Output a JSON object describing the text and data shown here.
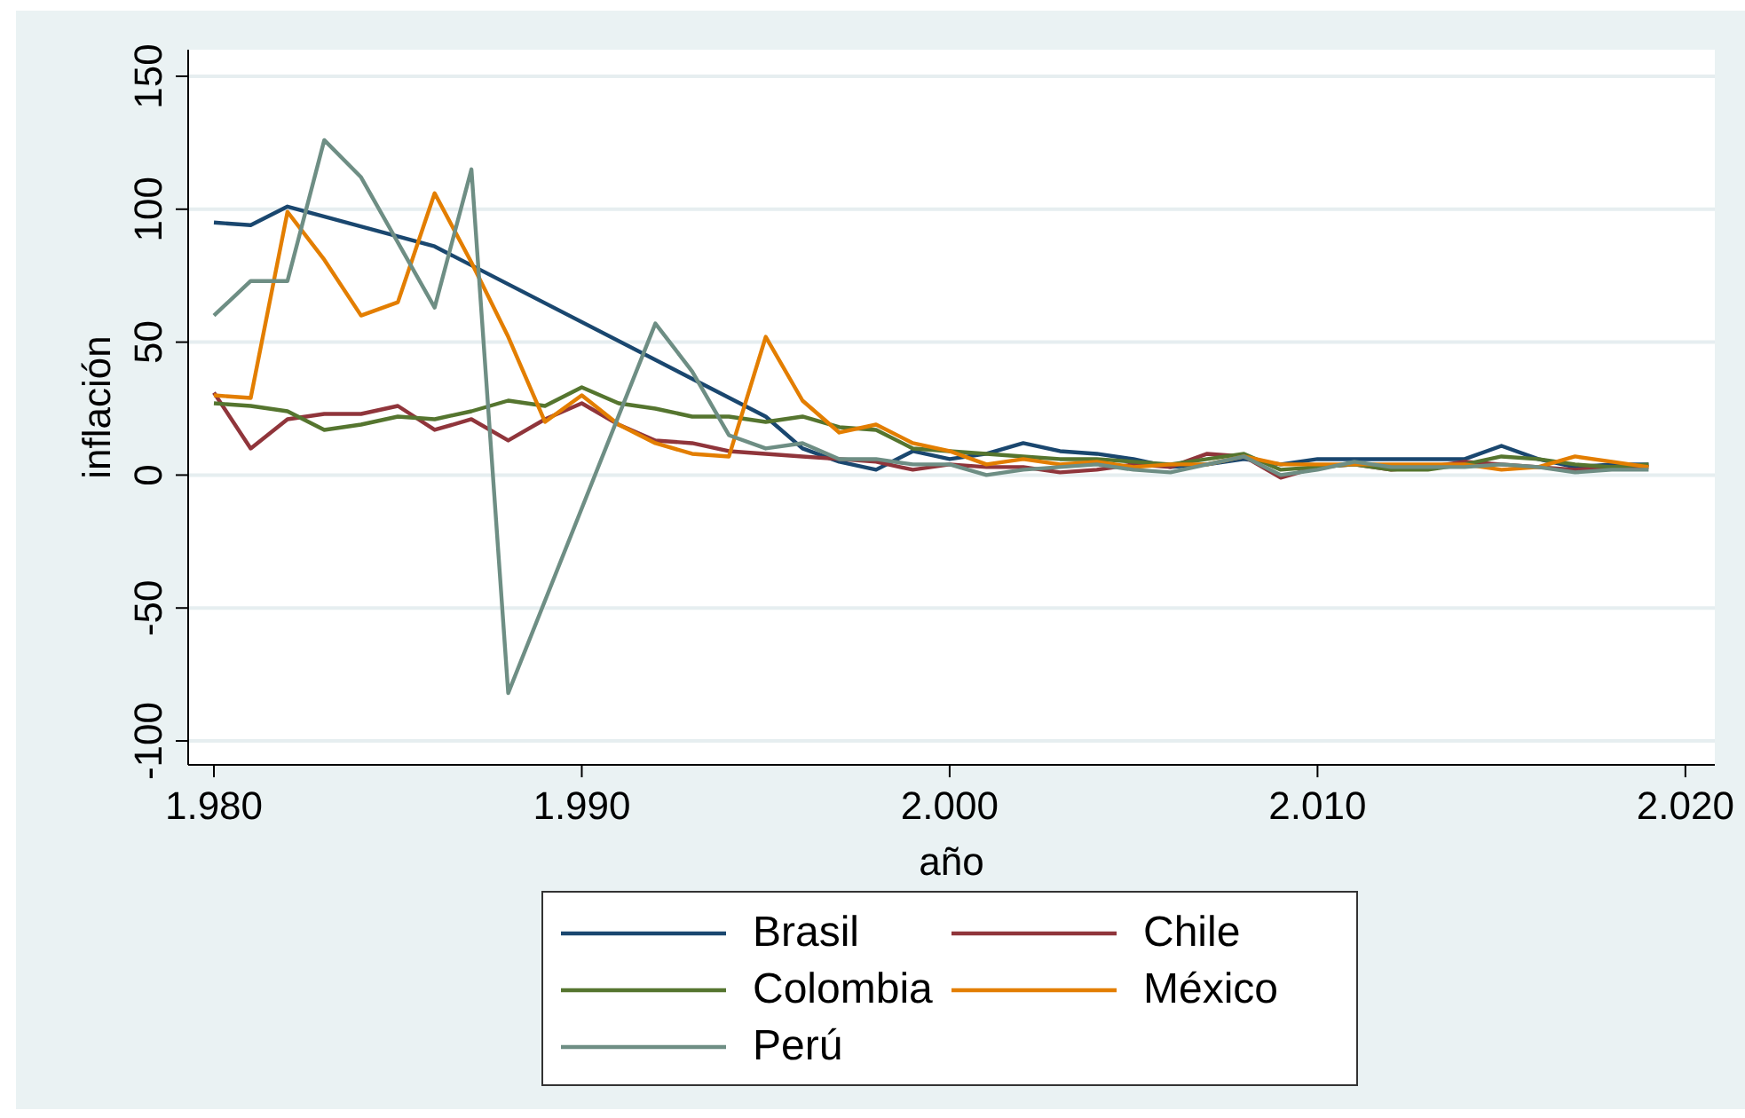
{
  "chart_data": {
    "type": "line",
    "xlabel": "año",
    "ylabel": "inflación",
    "xlim": [
      1979.3,
      2020.8
    ],
    "xticks": [
      {
        "value": 1980,
        "label": "1.980"
      },
      {
        "value": 1990,
        "label": "1.990"
      },
      {
        "value": 2000,
        "label": "2.000"
      },
      {
        "value": 2010,
        "label": "2.010"
      },
      {
        "value": 2020,
        "label": "2.020"
      }
    ],
    "ylim": [
      -109,
      160
    ],
    "yticks": [
      -100,
      -50,
      0,
      50,
      100,
      150
    ],
    "grid": "y",
    "legend": "bottom",
    "series": [
      {
        "name": "Brasil",
        "color": "#1a476f",
        "x": [
          1980,
          1981,
          1982,
          1986,
          1995,
          1996,
          1997,
          1998,
          1999,
          2000,
          2001,
          2002,
          2003,
          2004,
          2005,
          2006,
          2007,
          2008,
          2009,
          2010,
          2011,
          2012,
          2013,
          2014,
          2015,
          2016,
          2017,
          2018,
          2019
        ],
        "values": [
          95,
          94,
          101,
          86,
          22,
          10,
          5,
          2,
          9,
          6,
          8,
          12,
          9,
          8,
          6,
          3,
          4,
          6,
          4,
          6,
          6,
          6,
          6,
          6,
          11,
          6,
          3,
          4,
          4
        ]
      },
      {
        "name": "Chile",
        "color": "#90353b",
        "x": [
          1980,
          1981,
          1982,
          1983,
          1984,
          1985,
          1986,
          1987,
          1988,
          1989,
          1990,
          1991,
          1992,
          1993,
          1994,
          1995,
          1996,
          1997,
          1998,
          1999,
          2000,
          2001,
          2002,
          2003,
          2004,
          2005,
          2006,
          2007,
          2008,
          2009,
          2010,
          2011,
          2012,
          2013,
          2014,
          2015,
          2016,
          2017,
          2018,
          2019
        ],
        "values": [
          31,
          10,
          21,
          23,
          23,
          26,
          17,
          21,
          13,
          21,
          27,
          19,
          13,
          12,
          9,
          8,
          7,
          6,
          5,
          2,
          4,
          3,
          3,
          1,
          2,
          4,
          3,
          8,
          7,
          -1,
          3,
          4,
          2,
          3,
          5,
          4,
          3,
          2,
          3,
          3
        ]
      },
      {
        "name": "Colombia",
        "color": "#55752f",
        "x": [
          1980,
          1981,
          1982,
          1983,
          1984,
          1985,
          1986,
          1987,
          1988,
          1989,
          1990,
          1991,
          1992,
          1993,
          1994,
          1995,
          1996,
          1997,
          1998,
          1999,
          2000,
          2001,
          2002,
          2003,
          2004,
          2005,
          2006,
          2007,
          2008,
          2009,
          2010,
          2011,
          2012,
          2013,
          2014,
          2015,
          2016,
          2017,
          2018,
          2019
        ],
        "values": [
          27,
          26,
          24,
          17,
          19,
          22,
          21,
          24,
          28,
          26,
          33,
          27,
          25,
          22,
          22,
          20,
          22,
          18,
          17,
          10,
          9,
          8,
          7,
          6,
          6,
          5,
          4,
          6,
          8,
          2,
          3,
          4,
          2,
          2,
          4,
          7,
          6,
          4,
          3,
          4
        ]
      },
      {
        "name": "México",
        "color": "#e37e00",
        "x": [
          1980,
          1981,
          1982,
          1983,
          1984,
          1985,
          1986,
          1987,
          1988,
          1989,
          1990,
          1991,
          1992,
          1993,
          1994,
          1995,
          1996,
          1997,
          1998,
          1999,
          2000,
          2001,
          2002,
          2003,
          2004,
          2005,
          2006,
          2007,
          2008,
          2009,
          2010,
          2011,
          2012,
          2013,
          2014,
          2015,
          2016,
          2017,
          2018,
          2019
        ],
        "values": [
          30,
          29,
          99,
          81,
          60,
          65,
          106,
          80,
          52,
          20,
          30,
          19,
          12,
          8,
          7,
          52,
          28,
          16,
          19,
          12,
          9,
          4,
          6,
          4,
          5,
          3,
          4,
          4,
          7,
          4,
          4,
          4,
          4,
          4,
          4,
          2,
          3,
          7,
          5,
          3
        ]
      },
      {
        "name": "Perú",
        "color": "#6e8e84",
        "x": [
          1980,
          1981,
          1982,
          1983,
          1984,
          1986,
          1987,
          1988,
          1992,
          1993,
          1994,
          1995,
          1996,
          1997,
          1998,
          1999,
          2000,
          2001,
          2002,
          2003,
          2004,
          2005,
          2006,
          2007,
          2008,
          2009,
          2010,
          2011,
          2012,
          2013,
          2014,
          2015,
          2016,
          2017,
          2018,
          2019
        ],
        "values": [
          60,
          73,
          73,
          126,
          112,
          63,
          115,
          -82,
          57,
          39,
          15,
          10,
          12,
          6,
          6,
          4,
          4,
          0,
          2,
          3,
          4,
          2,
          1,
          4,
          7,
          0,
          2,
          5,
          3,
          3,
          3,
          4,
          3,
          1,
          2,
          2
        ]
      }
    ]
  }
}
